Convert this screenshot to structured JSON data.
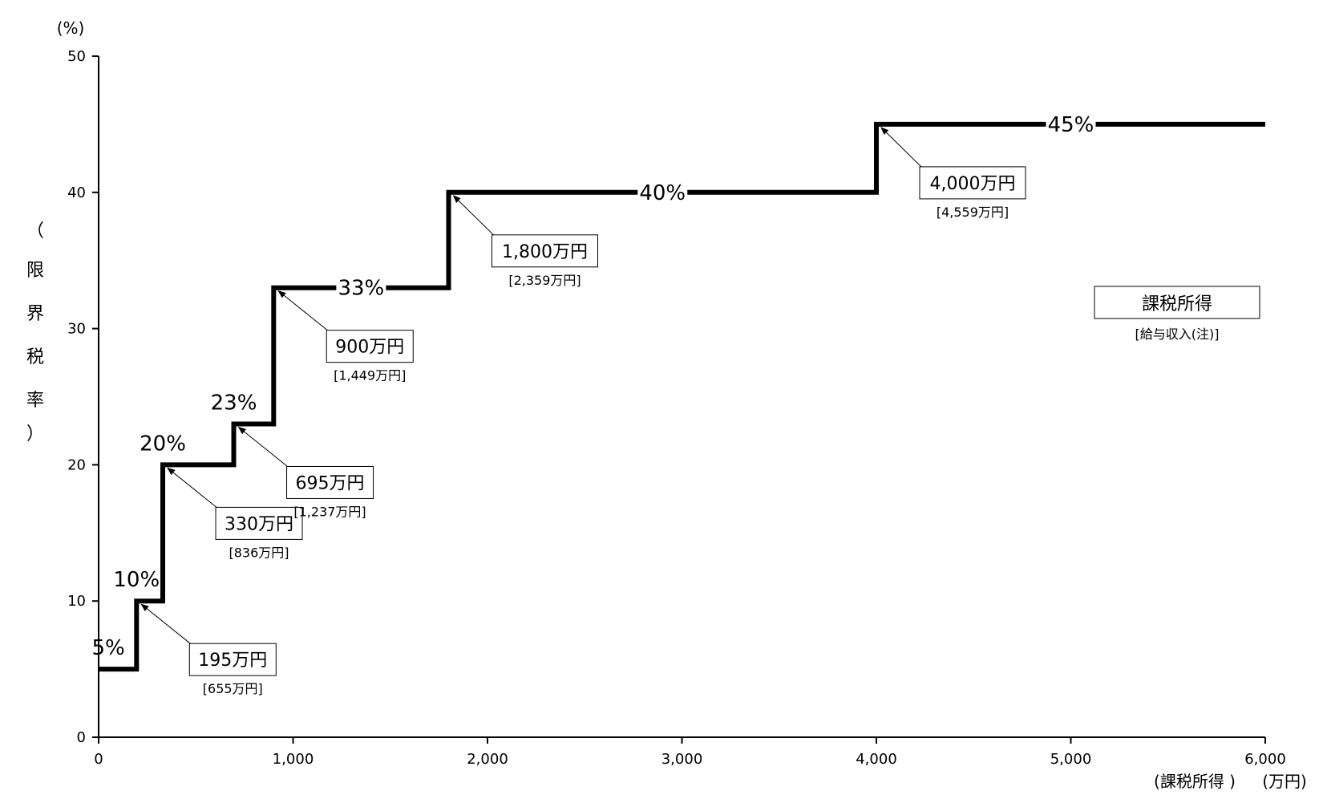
{
  "chart_data": {
    "type": "line",
    "step": true,
    "x_unit": "(万円)",
    "x_axis_note": "(課税所得 )",
    "y_unit": "(%)",
    "ylabel_chars": [
      "（",
      "限",
      "界",
      "税",
      "率",
      "）"
    ],
    "xlim": [
      0,
      6000
    ],
    "ylim": [
      0,
      50
    ],
    "x_ticks": [
      0,
      1000,
      2000,
      3000,
      4000,
      5000,
      6000
    ],
    "x_tick_labels": [
      "0",
      "1,000",
      "2,000",
      "3,000",
      "4,000",
      "5,000",
      "6,000"
    ],
    "y_ticks": [
      0,
      10,
      20,
      30,
      40,
      50
    ],
    "y_tick_labels": [
      "0",
      "10",
      "20",
      "30",
      "40",
      "50"
    ],
    "series": [
      {
        "points": [
          [
            0,
            5
          ],
          [
            195,
            5
          ],
          [
            195,
            10
          ],
          [
            330,
            10
          ],
          [
            330,
            20
          ],
          [
            695,
            20
          ],
          [
            695,
            23
          ],
          [
            900,
            23
          ],
          [
            900,
            33
          ],
          [
            1800,
            33
          ],
          [
            1800,
            40
          ],
          [
            4000,
            40
          ],
          [
            4000,
            45
          ],
          [
            6000,
            45
          ]
        ]
      }
    ],
    "rate_labels": [
      {
        "text": "5%",
        "x": 50,
        "y": 5
      },
      {
        "text": "10%",
        "x": 195,
        "y": 10
      },
      {
        "text": "20%",
        "x": 330,
        "y": 20
      },
      {
        "text": "23%",
        "x": 695,
        "y": 23
      },
      {
        "text": "33%",
        "x": 1350,
        "y": 33
      },
      {
        "text": "40%",
        "x": 2900,
        "y": 40
      },
      {
        "text": "45%",
        "x": 5000,
        "y": 45
      }
    ],
    "thresholds": [
      {
        "x": 195,
        "y": 10,
        "label": "195万円",
        "sub": "[655万円]"
      },
      {
        "x": 330,
        "y": 20,
        "label": "330万円",
        "sub": "[836万円]"
      },
      {
        "x": 695,
        "y": 23,
        "label": "695万円",
        "sub": "[1,237万円]"
      },
      {
        "x": 900,
        "y": 33,
        "label": "900万円",
        "sub": "[1,449万円]"
      },
      {
        "x": 1800,
        "y": 40,
        "label": "1,800万円",
        "sub": "[2,359万円]"
      },
      {
        "x": 4000,
        "y": 45,
        "label": "4,000万円",
        "sub": "[4,559万円]"
      }
    ],
    "legend": {
      "label": "課税所得",
      "sub": "[給与収入(注)]",
      "position": "right"
    }
  }
}
